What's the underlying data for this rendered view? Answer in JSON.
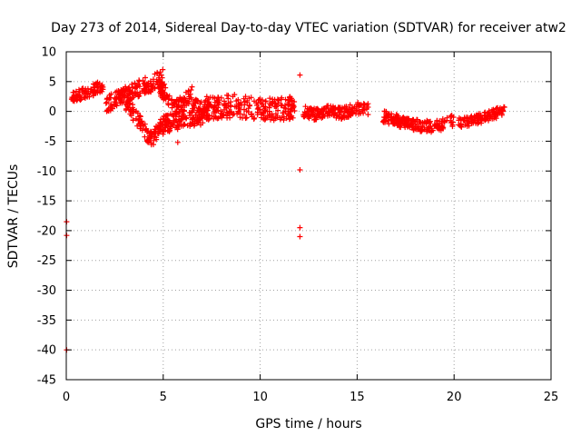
{
  "chart_data": {
    "type": "scatter",
    "title": "Day 273 of 2014, Sidereal Day-to-day VTEC variation (SDTVAR) for receiver atw2",
    "xlabel": "GPS time / hours",
    "ylabel": "SDTVAR / TECUs",
    "xlim": [
      0,
      25
    ],
    "ylim": [
      -45,
      10
    ],
    "x_ticks": [
      0,
      5,
      10,
      15,
      20,
      25
    ],
    "y_ticks": [
      10,
      5,
      0,
      -5,
      -10,
      -15,
      -20,
      -25,
      -30,
      -35,
      -40,
      -45
    ],
    "grid": true,
    "marker": "+",
    "color": "#ff0000",
    "bands": [
      {
        "x": [
          0.2,
          0.5,
          1.0,
          1.5,
          1.9
        ],
        "center": [
          2.2,
          2.6,
          3.0,
          3.8,
          4.4
        ],
        "spread": 1.0
      },
      {
        "x": [
          2.0,
          2.6,
          3.2,
          3.8,
          4.3,
          4.6,
          4.9,
          5.1
        ],
        "center": [
          1.0,
          2.0,
          3.0,
          4.0,
          4.5,
          5.0,
          5.4,
          6.0
        ],
        "spread": 1.4
      },
      {
        "x": [
          2.8,
          3.2,
          3.7,
          4.1,
          4.4,
          4.7,
          5.0
        ],
        "center": [
          2.5,
          1.0,
          -1.5,
          -3.5,
          -4.8,
          -3.5,
          -2.0
        ],
        "spread": 1.3
      },
      {
        "x": [
          4.8,
          5.2,
          5.6,
          6.0,
          6.5
        ],
        "center": [
          4.0,
          2.5,
          0.5,
          1.5,
          3.0
        ],
        "spread": 1.2
      },
      {
        "x": [
          4.8,
          5.3,
          5.8,
          6.3,
          6.9,
          7.5
        ],
        "center": [
          -2.5,
          -2.0,
          -1.5,
          -1.0,
          -1.0,
          1.0
        ],
        "spread": 1.5
      },
      {
        "x": [
          6.5,
          7.2,
          8.0,
          8.8,
          9.5,
          10.3,
          11.0,
          11.8
        ],
        "center": [
          0.0,
          0.5,
          0.8,
          1.0,
          0.5,
          0.2,
          0.5,
          0.5
        ],
        "spread": 2.0
      },
      {
        "x": [
          12.2,
          12.8,
          13.5,
          14.2,
          15.0,
          15.6
        ],
        "center": [
          0.0,
          -0.5,
          0.2,
          -0.3,
          0.5,
          0.3
        ],
        "spread": 1.0
      },
      {
        "x": [
          16.3,
          17.0,
          17.6,
          18.3,
          19.0,
          19.6,
          20.0
        ],
        "center": [
          -0.8,
          -1.5,
          -2.0,
          -2.5,
          -2.5,
          -2.0,
          -1.5
        ],
        "spread": 1.0
      },
      {
        "x": [
          20.2,
          20.8,
          21.5,
          22.0,
          22.6
        ],
        "center": [
          -2.0,
          -1.5,
          -1.0,
          -0.5,
          0.0
        ],
        "spread": 0.9
      }
    ],
    "outliers": [
      {
        "x": 0.02,
        "y": -18.5
      },
      {
        "x": 0.02,
        "y": -20.8
      },
      {
        "x": 0.02,
        "y": -40.0
      },
      {
        "x": 12.05,
        "y": 6.1
      },
      {
        "x": 12.05,
        "y": -9.8
      },
      {
        "x": 12.05,
        "y": -19.5
      },
      {
        "x": 12.05,
        "y": -21.0
      },
      {
        "x": 5.75,
        "y": -5.2
      }
    ]
  }
}
